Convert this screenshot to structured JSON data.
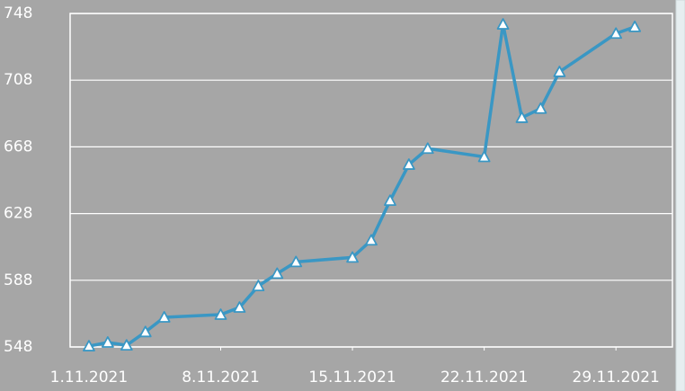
{
  "chart_data": {
    "type": "line",
    "x": [
      "1.11.2021",
      "2.11.2021",
      "3.11.2021",
      "4.11.2021",
      "5.11.2021",
      "8.11.2021",
      "9.11.2021",
      "10.11.2021",
      "11.11.2021",
      "12.11.2021",
      "15.11.2021",
      "16.11.2021",
      "17.11.2021",
      "18.11.2021",
      "19.11.2021",
      "22.11.2021",
      "23.11.2021",
      "24.11.2021",
      "25.11.2021",
      "26.11.2021",
      "29.11.2021",
      "30.11.2021"
    ],
    "series": [
      {
        "color": "#3a97c4",
        "values": [
          548.5,
          550.7,
          549,
          557,
          565.8,
          567.4,
          571.7,
          584.6,
          592,
          599,
          601.7,
          612,
          635.8,
          657.4,
          667,
          662,
          741.5,
          685.5,
          691,
          713,
          736,
          740
        ]
      }
    ],
    "xlim": [
      "31.10.2021",
      "2.12.2021"
    ],
    "xticks": [
      "1.11.2021",
      "8.11.2021",
      "15.11.2021",
      "22.11.2021",
      "29.11.2021"
    ],
    "ylim": [
      548,
      748
    ],
    "yticks": [
      548,
      588,
      628,
      668,
      708,
      748
    ],
    "grid": true
  }
}
